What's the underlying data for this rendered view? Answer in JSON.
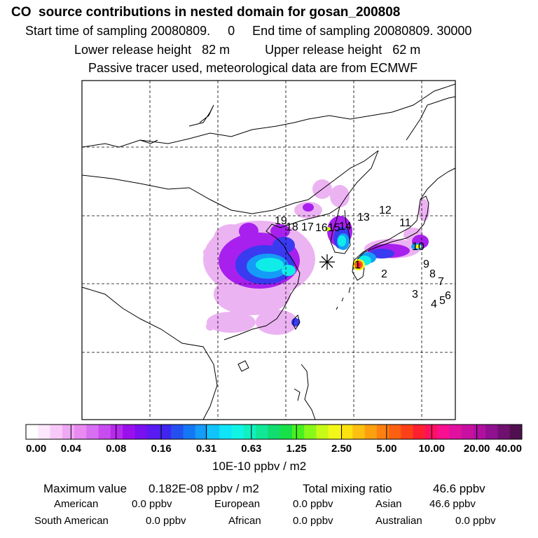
{
  "header": {
    "title": "CO  source contributions in nested domain for gosan_200808",
    "sampling_line": "Start time of sampling 20080809.     0     End time of sampling 20080809. 30000",
    "release_line": "Lower release height   82 m          Upper release height   62 m",
    "tracer_line": "Passive tracer used, meteorological data are from ECMWF"
  },
  "map": {
    "receptor_marker_icon": "asterisk-icon",
    "region_labels": [
      "1",
      "2",
      "3",
      "4",
      "5",
      "6",
      "7",
      "8",
      "9",
      "10",
      "11",
      "12",
      "13",
      "14",
      "15",
      "16",
      "17",
      "18",
      "19"
    ]
  },
  "colorbar": {
    "tick_labels": [
      "0.00",
      "0.04",
      "0.08",
      "0.16",
      "0.31",
      "0.63",
      "1.25",
      "2.50",
      "5.00",
      "10.00",
      "20.00",
      "40.00"
    ],
    "unit_label": "10E-10 ppbv / m2",
    "colors": [
      "#ffffff",
      "#fde8fd",
      "#f8c9f8",
      "#efa8f3",
      "#e98af0",
      "#d86ef2",
      "#c84bf0",
      "#b62aee",
      "#9a10ec",
      "#7a10f0",
      "#5a1af2",
      "#4024f0",
      "#2450f0",
      "#1478f4",
      "#149cf8",
      "#10c4fa",
      "#10e4f8",
      "#10f4e4",
      "#10f0c0",
      "#10e898",
      "#10dc70",
      "#18e048",
      "#48f020",
      "#88f818",
      "#c8fa18",
      "#f4f818",
      "#fde210",
      "#fdc010",
      "#fda010",
      "#fd8010",
      "#fd6010",
      "#fd4018",
      "#fd2030",
      "#fd1060",
      "#f81090",
      "#e010a0",
      "#c810a0",
      "#b010a0",
      "#901090",
      "#701070",
      "#501050"
    ]
  },
  "footer": {
    "max_label": "Maximum value",
    "max_value": "0.182E-08 ppbv / m2",
    "total_label": "Total mixing ratio",
    "total_value": "46.6 ppbv",
    "regions": [
      {
        "name": "American",
        "value": "0.0 ppbv"
      },
      {
        "name": "European",
        "value": "0.0 ppbv"
      },
      {
        "name": "Asian",
        "value": "46.6 ppbv"
      },
      {
        "name": "South American",
        "value": "0.0 ppbv"
      },
      {
        "name": "African",
        "value": "0.0 ppbv"
      },
      {
        "name": "Australian",
        "value": "0.0 ppbv"
      }
    ]
  }
}
